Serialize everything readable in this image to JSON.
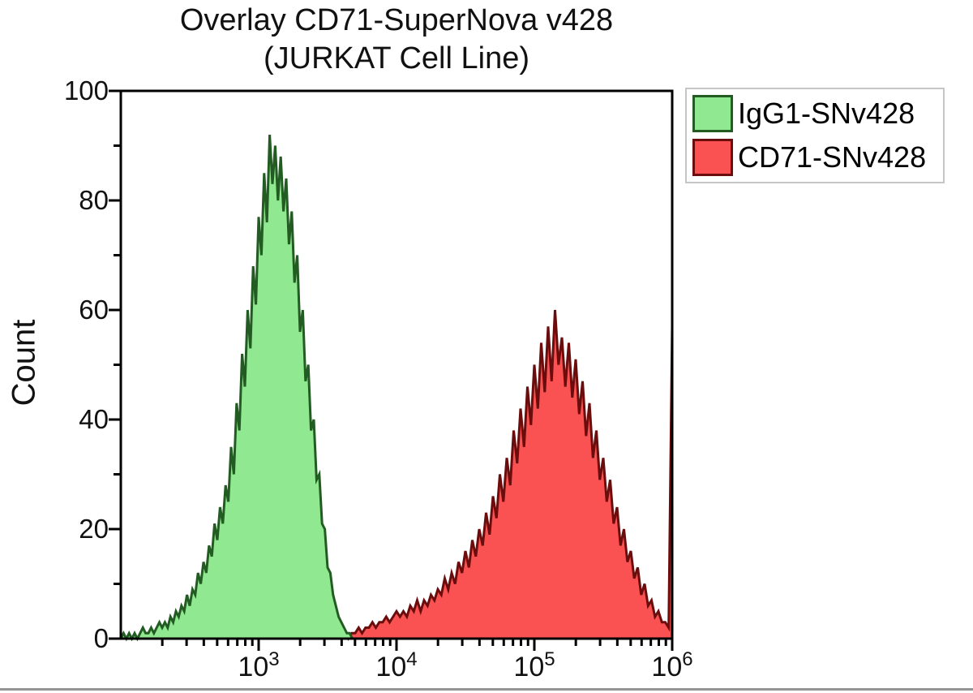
{
  "page": {
    "background": "#ffffff",
    "bottom_rule_color": "#949494"
  },
  "chart_data": {
    "type": "area",
    "subtype": "flow-cytometry-histogram-overlay",
    "title": "Overlay CD71-SuperNova v428\n(JURKAT Cell Line)",
    "xlabel": "",
    "ylabel": "Count",
    "x_scale": "log10",
    "xlim_log": [
      2,
      6
    ],
    "ylim": [
      0,
      100
    ],
    "yticks_major": [
      0,
      20,
      40,
      60,
      80,
      100
    ],
    "ytick_minor_step": 10,
    "xticks_major_exponents": [
      3,
      4,
      5,
      6
    ],
    "x_minor_ticks": "log decades 2-9 between 100 and 1000000",
    "grid": "off",
    "frame": "full box",
    "axis_color": "#000000",
    "legend": {
      "position": "top-right",
      "border_color": "#c6c6c6",
      "entries": [
        "IgG1-SNv428",
        "CD71-SNv428"
      ]
    },
    "draw_order": [
      "CD71-SNv428",
      "IgG1-SNv428"
    ],
    "series": [
      {
        "name": "IgG1-SNv428",
        "fill": "#90e890",
        "stroke": "#235c23",
        "peak_log_x": 3.08,
        "peak_count": 92,
        "log_x_start": 2.0,
        "log_x_step": 0.02,
        "extend_to_log_x": 6.0,
        "counts": [
          0,
          1,
          0,
          1,
          0,
          1,
          0,
          1,
          2,
          1,
          1,
          2,
          1,
          2,
          3,
          2,
          3,
          2,
          4,
          3,
          5,
          4,
          6,
          5,
          8,
          6,
          9,
          8,
          12,
          10,
          14,
          12,
          17,
          15,
          21,
          18,
          24,
          21,
          28,
          25,
          35,
          30,
          43,
          38,
          52,
          46,
          60,
          53,
          68,
          61,
          77,
          70,
          85,
          76,
          92,
          83,
          90,
          80,
          88,
          78,
          84,
          72,
          78,
          65,
          70,
          56,
          60,
          47,
          50,
          38,
          40,
          29,
          30,
          21,
          20,
          13,
          12,
          8,
          6,
          4,
          3,
          2,
          1,
          1,
          0,
          0
        ]
      },
      {
        "name": "CD71-SNv428",
        "fill": "#fa5252",
        "stroke": "#6b0d0d",
        "peak_log_x": 5.15,
        "peak_count": 60,
        "edge_spike_count": 57,
        "log_x_start": 3.6,
        "log_x_step": 0.025,
        "counts": [
          0,
          1,
          0,
          1,
          1,
          2,
          1,
          2,
          2,
          3,
          2,
          3,
          3,
          4,
          3,
          4,
          5,
          4,
          5,
          4,
          6,
          5,
          7,
          5,
          7,
          6,
          8,
          7,
          9,
          8,
          11,
          9,
          12,
          10,
          14,
          12,
          16,
          13,
          18,
          15,
          20,
          17,
          23,
          19,
          26,
          22,
          30,
          25,
          33,
          28,
          38,
          32,
          42,
          35,
          46,
          39,
          50,
          42,
          54,
          45,
          57,
          47,
          60,
          50,
          55,
          46,
          54,
          44,
          51,
          41,
          47,
          37,
          43,
          33,
          38,
          29,
          33,
          25,
          29,
          21,
          24,
          17,
          20,
          14,
          16,
          11,
          13,
          8,
          10,
          6,
          7,
          4,
          5,
          3,
          3,
          2,
          57
        ]
      }
    ]
  }
}
